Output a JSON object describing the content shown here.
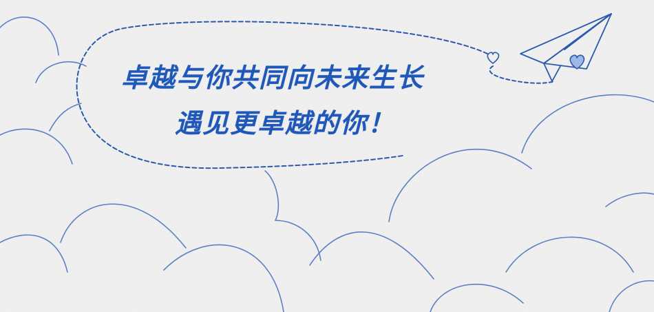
{
  "banner": {
    "headline_line1": "卓越与你共同向未来生长",
    "headline_line2": "遇见更卓越的你！"
  },
  "colors": {
    "background": "#f3f3f3",
    "line": "#5b7fc4",
    "text": "#1f58b8",
    "heart_fill": "#9bb8e6"
  },
  "icons": {
    "plane": "paper-plane-icon",
    "heart_small": "heart-outline-icon",
    "heart_plane": "heart-icon"
  }
}
